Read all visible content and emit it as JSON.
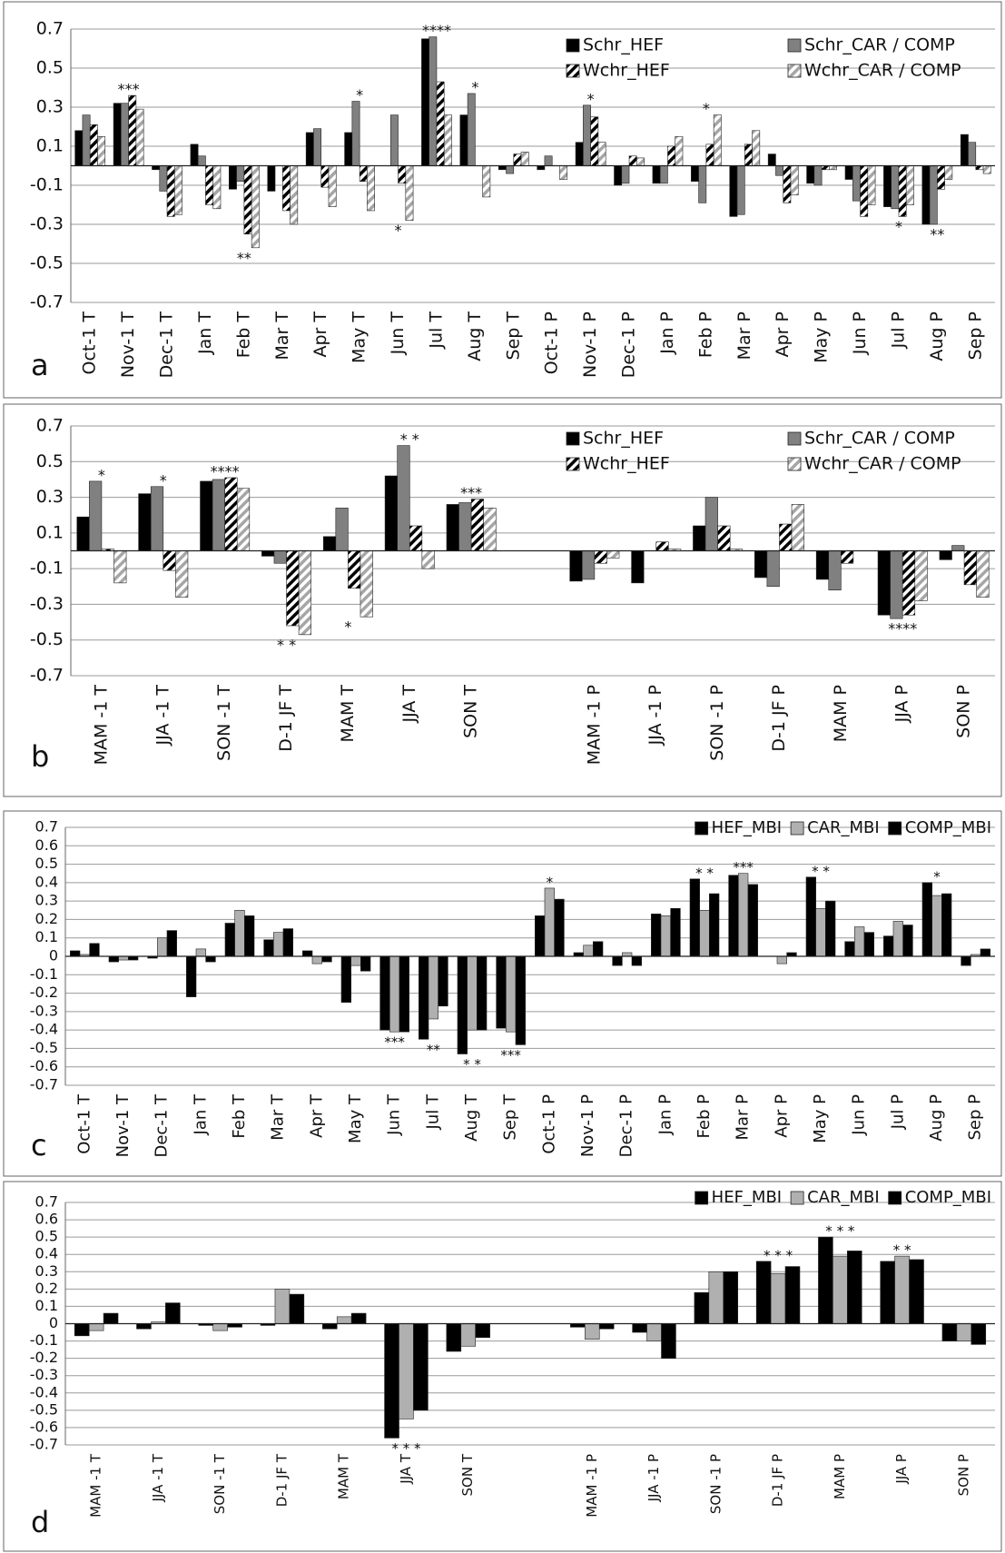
{
  "chart_data": [
    {
      "type": "bar",
      "panel_label": "a",
      "categories": [
        "Oct-1 T",
        "Nov-1 T",
        "Dec-1 T",
        "Jan T",
        "Feb T",
        "Mar T",
        "Apr T",
        "May T",
        "Jun T",
        "Jul T",
        "Aug T",
        "Sep T",
        "Oct-1 P",
        "Nov-1 P",
        "Dec-1 P",
        "Jan P",
        "Feb P",
        "Mar P",
        "Apr P",
        "May P",
        "Jun P",
        "Jul P",
        "Aug P",
        "Sep P"
      ],
      "series": [
        {
          "name": "Schr_HEF",
          "color": "#000000",
          "values": [
            0.18,
            0.32,
            -0.02,
            0.11,
            -0.12,
            -0.13,
            0.17,
            0.17,
            0.0,
            0.65,
            0.26,
            -0.02,
            -0.02,
            0.12,
            -0.1,
            -0.09,
            -0.08,
            -0.26,
            0.06,
            -0.09,
            -0.07,
            -0.21,
            -0.3,
            0.16
          ]
        },
        {
          "name": "Schr_CAR / COMP",
          "color": "#808080",
          "values": [
            0.26,
            0.32,
            -0.13,
            0.05,
            -0.08,
            0.0,
            0.19,
            0.33,
            0.26,
            0.66,
            0.37,
            -0.04,
            0.05,
            0.31,
            -0.09,
            -0.09,
            -0.19,
            -0.25,
            -0.05,
            -0.1,
            -0.18,
            -0.22,
            -0.3,
            0.12
          ]
        },
        {
          "name": "Wchr_HEF",
          "color": "#000000",
          "pattern": "hatch",
          "values": [
            0.21,
            0.36,
            -0.26,
            -0.2,
            -0.35,
            -0.23,
            -0.11,
            -0.08,
            -0.09,
            0.43,
            0.0,
            0.06,
            0.0,
            0.25,
            0.05,
            0.1,
            0.11,
            0.11,
            -0.19,
            -0.02,
            -0.26,
            -0.26,
            -0.12,
            -0.02
          ]
        },
        {
          "name": "Wchr_CAR / COMP",
          "color": "#a6a6a6",
          "pattern": "hatch",
          "values": [
            0.15,
            0.29,
            -0.25,
            -0.22,
            -0.42,
            -0.3,
            -0.21,
            -0.23,
            -0.28,
            0.26,
            -0.16,
            0.07,
            -0.07,
            0.12,
            0.04,
            0.15,
            0.26,
            0.18,
            -0.15,
            -0.02,
            -0.2,
            -0.2,
            -0.07,
            -0.04
          ]
        }
      ],
      "significance": [
        null,
        "***",
        null,
        null,
        "**",
        null,
        null,
        "*",
        "*",
        "****",
        "*",
        null,
        null,
        "*",
        null,
        null,
        "*",
        null,
        null,
        null,
        null,
        "*",
        "**",
        null
      ],
      "ylim": [
        -0.7,
        0.7
      ],
      "yticks": [
        0.7,
        0.5,
        0.3,
        0.1,
        -0.1,
        -0.3,
        -0.5,
        -0.7
      ],
      "grid": true,
      "legend": "upper right"
    },
    {
      "type": "bar",
      "panel_label": "b",
      "categories": [
        "MAM -1 T",
        "JJA -1 T",
        "SON -1 T",
        "D-1 JF T",
        "MAM T",
        "JJA T",
        "SON T",
        null,
        "MAM -1 P",
        "JJA -1 P",
        "SON -1 P",
        "D-1 JF P",
        "MAM P",
        "JJA P",
        "SON P"
      ],
      "series": [
        {
          "name": "Schr_HEF",
          "color": "#000000",
          "values": [
            0.19,
            0.32,
            0.39,
            -0.03,
            0.08,
            0.42,
            0.26,
            null,
            -0.17,
            -0.18,
            0.14,
            -0.15,
            -0.16,
            -0.36,
            -0.05
          ]
        },
        {
          "name": "Schr_CAR / COMP",
          "color": "#808080",
          "values": [
            0.39,
            0.36,
            0.4,
            -0.07,
            0.24,
            0.59,
            0.27,
            null,
            -0.16,
            0.0,
            0.3,
            -0.2,
            -0.22,
            -0.38,
            0.03
          ]
        },
        {
          "name": "Wchr_HEF",
          "color": "#000000",
          "pattern": "hatch",
          "values": [
            0.01,
            -0.11,
            0.41,
            -0.42,
            -0.21,
            0.14,
            0.29,
            null,
            -0.07,
            0.05,
            0.14,
            0.15,
            -0.07,
            -0.36,
            -0.19
          ]
        },
        {
          "name": "Wchr_CAR / COMP",
          "color": "#a6a6a6",
          "pattern": "hatch",
          "values": [
            -0.18,
            -0.26,
            0.35,
            -0.47,
            -0.37,
            -0.1,
            0.24,
            null,
            -0.04,
            0.01,
            0.01,
            0.26,
            0.0,
            -0.28,
            -0.26
          ]
        }
      ],
      "significance": [
        "*",
        "*",
        "****",
        "* *",
        "*",
        "* *",
        "***",
        null,
        null,
        null,
        null,
        null,
        null,
        "****",
        null
      ],
      "ylim": [
        -0.7,
        0.7
      ],
      "yticks": [
        0.7,
        0.5,
        0.3,
        0.1,
        -0.1,
        -0.3,
        -0.5,
        -0.7
      ],
      "grid": true,
      "legend": "upper right"
    },
    {
      "type": "bar",
      "panel_label": "c",
      "categories": [
        "Oct-1 T",
        "Nov-1 T",
        "Dec-1 T",
        "Jan T",
        "Feb T",
        "Mar T",
        "Apr T",
        "May T",
        "Jun T",
        "Jul T",
        "Aug T",
        "Sep T",
        "Oct-1 P",
        "Nov-1 P",
        "Dec-1 P",
        "Jan P",
        "Feb P",
        "Mar P",
        "Apr P",
        "May P",
        "Jun P",
        "Jul P",
        "Aug P",
        "Sep P"
      ],
      "series": [
        {
          "name": "HEF_MBI",
          "color": "#000000",
          "values": [
            0.03,
            -0.03,
            -0.01,
            -0.22,
            0.18,
            0.09,
            0.03,
            -0.25,
            -0.4,
            -0.45,
            -0.53,
            -0.39,
            0.22,
            0.02,
            -0.05,
            0.23,
            0.42,
            0.44,
            0.0,
            0.43,
            0.08,
            0.11,
            0.4,
            -0.05
          ]
        },
        {
          "name": "CAR_MBI",
          "color": "#b0b0b0",
          "values": [
            0.01,
            -0.02,
            0.1,
            0.04,
            0.25,
            0.13,
            -0.04,
            -0.05,
            -0.41,
            -0.34,
            -0.4,
            -0.41,
            0.37,
            0.06,
            0.02,
            0.22,
            0.25,
            0.45,
            -0.04,
            0.26,
            0.16,
            0.19,
            0.33,
            0.01
          ]
        },
        {
          "name": "COMP_MBI",
          "color": "#000000",
          "values": [
            0.07,
            -0.02,
            0.14,
            -0.03,
            0.22,
            0.15,
            -0.03,
            -0.08,
            -0.41,
            -0.27,
            -0.4,
            -0.48,
            0.31,
            0.08,
            -0.05,
            0.26,
            0.34,
            0.39,
            0.02,
            0.3,
            0.13,
            0.17,
            0.34,
            0.04
          ]
        }
      ],
      "significance": [
        null,
        null,
        null,
        null,
        null,
        null,
        null,
        null,
        "***",
        "**",
        "*  *",
        "***",
        "*",
        null,
        null,
        null,
        "*  *",
        "***",
        null,
        "*  *",
        null,
        null,
        "*",
        null
      ],
      "ylim": [
        -0.7,
        0.7
      ],
      "yticks": [
        0.7,
        0.6,
        0.5,
        0.4,
        0.3,
        0.2,
        0.1,
        0,
        -0.1,
        -0.2,
        -0.3,
        -0.4,
        -0.5,
        -0.6,
        -0.7
      ],
      "grid": true,
      "legend": "upper right"
    },
    {
      "type": "bar",
      "panel_label": "d",
      "categories": [
        "MAM -1 T",
        "JJA -1 T",
        "SON -1 T",
        "D-1 JF T",
        "MAM T",
        "JJA T",
        "SON T",
        null,
        "MAM -1 P",
        "JJA -1 P",
        "SON -1 P",
        "D-1 JF P",
        "MAM P",
        "JJA P",
        "SON P"
      ],
      "series": [
        {
          "name": "HEF_MBI",
          "color": "#000000",
          "values": [
            -0.07,
            -0.03,
            -0.01,
            -0.01,
            -0.03,
            -0.66,
            -0.16,
            null,
            -0.02,
            -0.05,
            0.18,
            0.36,
            0.5,
            0.36,
            -0.1
          ]
        },
        {
          "name": "CAR_MBI",
          "color": "#b0b0b0",
          "values": [
            -0.04,
            0.01,
            -0.04,
            0.2,
            0.04,
            -0.55,
            -0.13,
            null,
            -0.09,
            -0.1,
            0.3,
            0.29,
            0.39,
            0.39,
            -0.1
          ]
        },
        {
          "name": "COMP_MBI",
          "color": "#000000",
          "values": [
            0.06,
            0.12,
            -0.02,
            0.17,
            0.06,
            -0.5,
            -0.08,
            null,
            -0.03,
            -0.2,
            0.3,
            0.33,
            0.42,
            0.37,
            -0.12
          ]
        }
      ],
      "significance": [
        null,
        null,
        null,
        null,
        null,
        "* * *",
        null,
        null,
        null,
        null,
        null,
        "* * *",
        "* * *",
        "* *",
        null
      ],
      "ylim": [
        -0.7,
        0.7
      ],
      "yticks": [
        0.7,
        0.6,
        0.5,
        0.4,
        0.3,
        0.2,
        0.1,
        0,
        -0.1,
        -0.2,
        -0.3,
        -0.4,
        -0.5,
        -0.6,
        -0.7
      ],
      "grid": true,
      "legend": "upper right"
    }
  ]
}
